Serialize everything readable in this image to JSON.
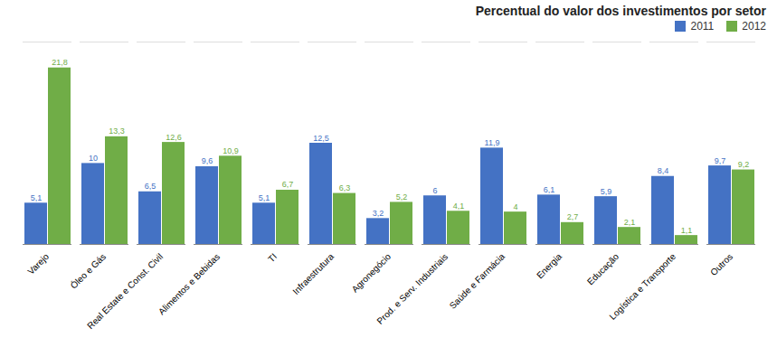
{
  "chart_data": {
    "type": "bar",
    "title": "Percentual do valor dos investimentos por setor",
    "categories": [
      "Varejo",
      "Óleo e Gás",
      "Real Estate e Const. Civil",
      "Alimentos e Bebidas",
      "TI",
      "Infraestrutura",
      "Agronegócio",
      "Prod. e Serv. Industriais",
      "Saúde e Farmácia",
      "Energia",
      "Educação",
      "Logística e Transporte",
      "Outros"
    ],
    "series": [
      {
        "name": "2011",
        "color": "#4472C4",
        "values": [
          5.1,
          10.0,
          6.5,
          9.6,
          5.1,
          12.5,
          3.2,
          6.0,
          11.9,
          6.1,
          5.9,
          8.4,
          9.7
        ],
        "value_labels": [
          "5,1",
          "10",
          "6,5",
          "9,6",
          "5,1",
          "12,5",
          "3,2",
          "6",
          "11,9",
          "6,1",
          "5,9",
          "8,4",
          "9,7"
        ]
      },
      {
        "name": "2012",
        "color": "#70AD47",
        "values": [
          21.8,
          13.3,
          12.6,
          10.9,
          6.7,
          6.3,
          5.2,
          4.1,
          4.0,
          2.7,
          2.1,
          1.1,
          9.2
        ],
        "value_labels": [
          "21,8",
          "13,3",
          "12,6",
          "10,9",
          "6,7",
          "6,3",
          "5,2",
          "4,1",
          "4",
          "2,7",
          "2,1",
          "1,1",
          "9,2"
        ]
      }
    ],
    "ylim": [
      0,
      25
    ],
    "grid": false,
    "legend": "upper right",
    "data_labels": true,
    "tick_labels": "x"
  }
}
